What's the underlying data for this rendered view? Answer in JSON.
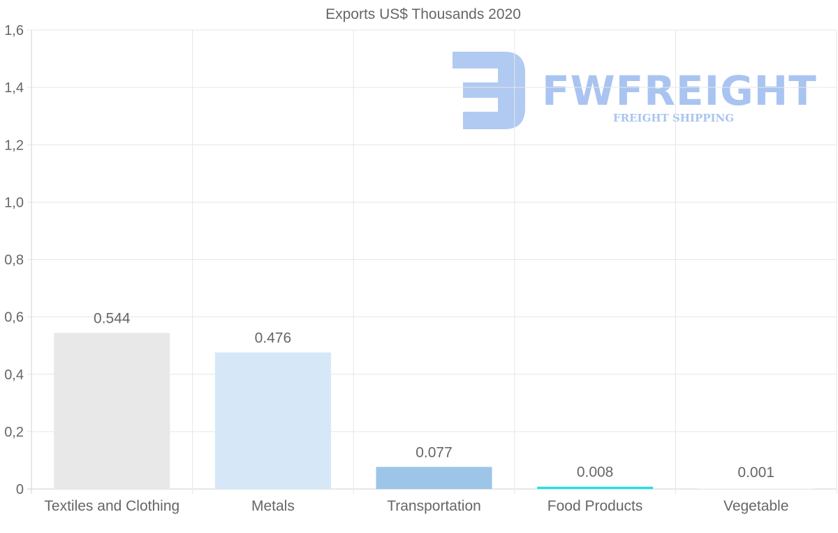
{
  "chart_data": {
    "type": "bar",
    "title": "Exports US$ Thousands 2020",
    "categories": [
      "Textiles and Clothing",
      "Metals",
      "Transportation",
      "Food Products",
      "Vegetable"
    ],
    "values": [
      0.544,
      0.476,
      0.077,
      0.008,
      0.001
    ],
    "value_labels": [
      "0.544",
      "0.476",
      "0.077",
      "0.008",
      "0.001"
    ],
    "bar_colors": [
      "#e8e8e8",
      "#d6e7f8",
      "#9cc5e8",
      "#22e0e8",
      "#f0f0f0"
    ],
    "ylim": [
      0,
      1.6
    ],
    "y_ticks": [
      "0",
      "0,2",
      "0,4",
      "0,6",
      "0,8",
      "1,0",
      "1,2",
      "1,4",
      "1,6"
    ],
    "y_tick_values": [
      0,
      0.2,
      0.4,
      0.6,
      0.8,
      1.0,
      1.2,
      1.4,
      1.6
    ],
    "grid": true,
    "legend": "none",
    "xlabel": "",
    "ylabel": ""
  },
  "watermark": {
    "brand": "FWFREIGHT",
    "tagline": "FREIGHT SHIPPING",
    "color": "#a9c4f0"
  }
}
